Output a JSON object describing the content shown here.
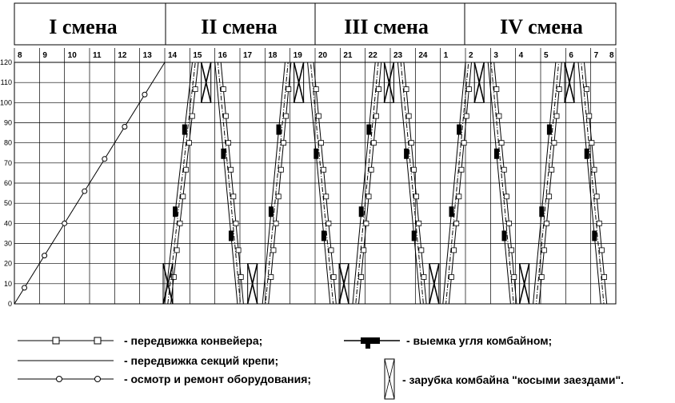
{
  "chart_data": {
    "type": "line",
    "shifts": [
      "I смена",
      "II смена",
      "III смена",
      "IV смена"
    ],
    "x_ticks": [
      "8",
      "9",
      "10",
      "11",
      "12",
      "13",
      "14",
      "15",
      "16",
      "17",
      "18",
      "19",
      "20",
      "21",
      "22",
      "23",
      "24",
      "1",
      "2",
      "3",
      "4",
      "5",
      "6",
      "7",
      "8"
    ],
    "ylim": [
      0,
      120
    ],
    "y_ticks": [
      0,
      10,
      20,
      30,
      40,
      50,
      60,
      70,
      80,
      90,
      100,
      110,
      120
    ],
    "grid": true,
    "series": [
      {
        "name": "осмотр и ремонт оборудования",
        "x": [
          8,
          14
        ],
        "y": [
          0,
          120
        ]
      },
      {
        "name": "выемка угля комбайном",
        "x": [
          14,
          15.1,
          16,
          16.9,
          17.9,
          18.8,
          19.7,
          20.6,
          21.5,
          22.4,
          23.3,
          24.2,
          25.1,
          26.0,
          26.9,
          27.8,
          28.7,
          29.6,
          30.5,
          31.4,
          32.0
        ],
        "y": [
          0,
          120,
          120,
          0,
          0,
          120,
          120,
          0,
          0,
          120,
          120,
          0,
          0,
          120,
          120,
          0,
          0,
          120,
          120,
          0,
          0
        ]
      }
    ]
  },
  "legend": {
    "conveyor": "- передвижка конвейера;",
    "supports": "- передвижка секций крепи;",
    "repair": "- осмотр и ремонт оборудования;",
    "cutting": "- выемка угля комбайном;",
    "notching": "- зарубка комбайна \"косыми заездами\"."
  }
}
